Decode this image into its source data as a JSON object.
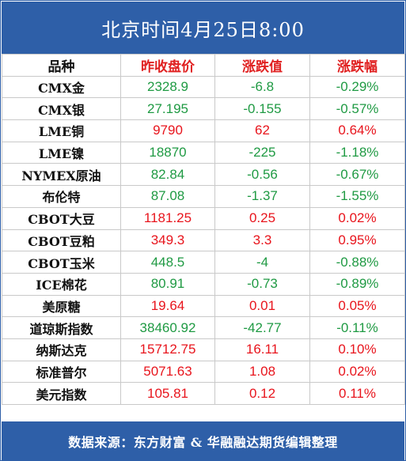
{
  "header": {
    "title": "北京时间4月25日8:00"
  },
  "table": {
    "columns": [
      "品种",
      "昨收盘价",
      "涨跌值",
      "涨跌幅"
    ],
    "rows": [
      {
        "name": "CMX金",
        "close": "2328.9",
        "change": "-6.8",
        "pct": "-0.29%",
        "dir": "down"
      },
      {
        "name": "CMX银",
        "close": "27.195",
        "change": "-0.155",
        "pct": "-0.57%",
        "dir": "down"
      },
      {
        "name": "LME铜",
        "close": "9790",
        "change": "62",
        "pct": "0.64%",
        "dir": "up"
      },
      {
        "name": "LME镍",
        "close": "18870",
        "change": "-225",
        "pct": "-1.18%",
        "dir": "down"
      },
      {
        "name": "NYMEX原油",
        "close": "82.84",
        "change": "-0.56",
        "pct": "-0.67%",
        "dir": "down"
      },
      {
        "name": "布伦特",
        "close": "87.08",
        "change": "-1.37",
        "pct": "-1.55%",
        "dir": "down"
      },
      {
        "name": "CBOT大豆",
        "close": "1181.25",
        "change": "0.25",
        "pct": "0.02%",
        "dir": "up"
      },
      {
        "name": "CBOT豆粕",
        "close": "349.3",
        "change": "3.3",
        "pct": "0.95%",
        "dir": "up"
      },
      {
        "name": "CBOT玉米",
        "close": "448.5",
        "change": "-4",
        "pct": "-0.88%",
        "dir": "down"
      },
      {
        "name": "ICE棉花",
        "close": "80.91",
        "change": "-0.73",
        "pct": "-0.89%",
        "dir": "down"
      },
      {
        "name": "美原糖",
        "close": "19.64",
        "change": "0.01",
        "pct": "0.05%",
        "dir": "up"
      },
      {
        "name": "道琼斯指数",
        "close": "38460.92",
        "change": "-42.77",
        "pct": "-0.11%",
        "dir": "down"
      },
      {
        "name": "纳斯达克",
        "close": "15712.75",
        "change": "16.11",
        "pct": "0.10%",
        "dir": "up"
      },
      {
        "name": "标准普尔",
        "close": "5071.63",
        "change": "1.08",
        "pct": "0.02%",
        "dir": "up"
      },
      {
        "name": "美元指数",
        "close": "105.81",
        "change": "0.12",
        "pct": "0.11%",
        "dir": "up"
      }
    ]
  },
  "colors": {
    "header_bg": "#2e5fa8",
    "up": "#e8141c",
    "down": "#1f9a43",
    "grid": "#c9c9c9"
  },
  "footer": {
    "text": "数据来源：东方财富 & 华融融达期货编辑整理"
  }
}
